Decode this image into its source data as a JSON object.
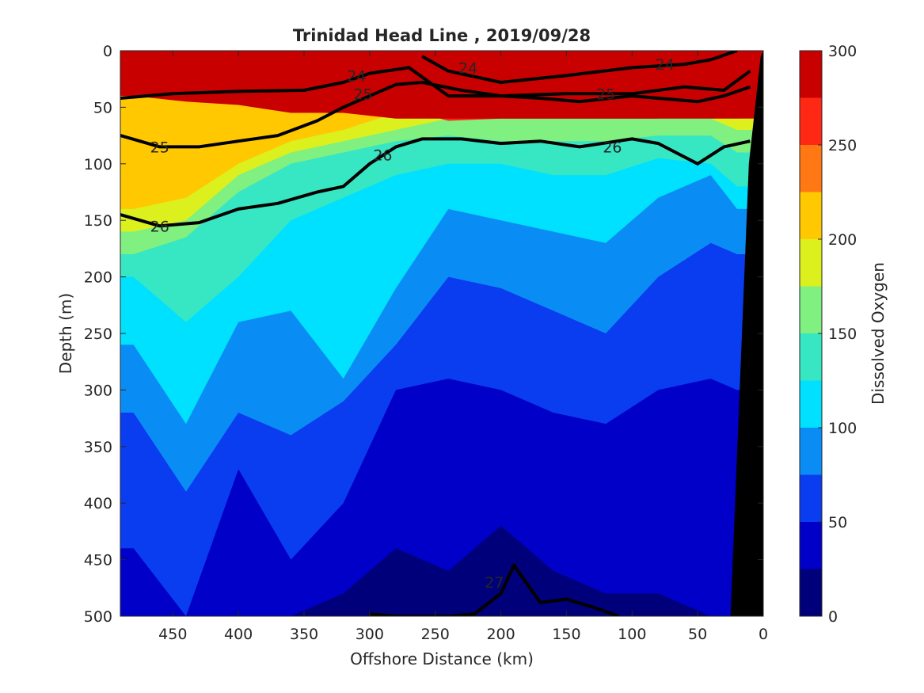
{
  "chart_data": {
    "type": "heatmap",
    "title": "Trinidad Head Line , 2019/09/28",
    "xlabel": "Offshore Distance (km)",
    "ylabel": "Depth (m)",
    "colorbar_label": "Dissolved Oxygen",
    "xlim": [
      490,
      0
    ],
    "ylim": [
      0,
      500
    ],
    "x_reversed": true,
    "y_reversed": true,
    "x_ticks": [
      450,
      400,
      350,
      300,
      250,
      200,
      150,
      100,
      50,
      0
    ],
    "y_ticks": [
      0,
      50,
      100,
      150,
      200,
      250,
      300,
      350,
      400,
      450,
      500
    ],
    "colorbar": {
      "ticks": [
        0,
        50,
        100,
        150,
        200,
        250,
        300
      ],
      "levels": [
        0,
        25,
        50,
        75,
        100,
        125,
        150,
        175,
        200,
        225,
        250,
        275,
        300
      ],
      "colors": [
        "#00007a",
        "#0000c8",
        "#0a3cf0",
        "#0a8cf5",
        "#00e0ff",
        "#37e6c3",
        "#80f080",
        "#dcf01e",
        "#ffc800",
        "#ff7814",
        "#ff2814",
        "#c80000"
      ]
    },
    "oxygen_depth_boundaries": {
      "x": [
        480,
        440,
        400,
        360,
        320,
        280,
        240,
        200,
        160,
        120,
        80,
        40,
        20
      ],
      "boundaries": [
        {
          "level": 275,
          "depth": [
            40,
            45,
            48,
            55,
            55,
            60,
            60,
            60,
            60,
            60,
            60,
            60,
            60
          ]
        },
        {
          "level": 250,
          "depth": [
            38,
            42,
            40,
            36,
            32,
            50,
            62,
            60,
            60,
            60,
            60,
            30,
            15
          ]
        },
        {
          "level": 225,
          "depth": [
            32,
            34,
            32,
            28,
            30,
            40,
            55,
            58,
            55,
            55,
            50,
            40,
            20
          ]
        },
        {
          "level": 200,
          "depth": [
            140,
            130,
            100,
            80,
            70,
            55,
            45,
            50,
            50,
            48,
            50,
            45,
            50
          ]
        },
        {
          "level": 175,
          "depth": [
            160,
            150,
            110,
            90,
            80,
            70,
            60,
            60,
            60,
            58,
            55,
            60,
            70
          ]
        },
        {
          "level": 150,
          "depth": [
            180,
            165,
            125,
            100,
            90,
            80,
            75,
            80,
            80,
            80,
            75,
            75,
            90
          ]
        },
        {
          "level": 125,
          "depth": [
            200,
            240,
            200,
            150,
            130,
            110,
            100,
            100,
            110,
            110,
            95,
            100,
            120
          ]
        },
        {
          "level": 100,
          "depth": [
            260,
            330,
            240,
            230,
            290,
            210,
            140,
            150,
            160,
            170,
            130,
            110,
            140
          ]
        },
        {
          "level": 75,
          "depth": [
            320,
            390,
            320,
            340,
            310,
            260,
            200,
            210,
            230,
            250,
            200,
            170,
            180
          ]
        },
        {
          "level": 50,
          "depth": [
            440,
            500,
            370,
            450,
            400,
            300,
            290,
            300,
            320,
            330,
            300,
            290,
            300
          ]
        },
        {
          "level": 25,
          "depth": [
            500,
            500,
            500,
            500,
            480,
            440,
            460,
            420,
            460,
            480,
            480,
            500,
            500
          ]
        }
      ]
    },
    "density_contours": [
      {
        "label": "24",
        "x": [
          260,
          240,
          200,
          150,
          100,
          60,
          40,
          20
        ],
        "depth": [
          5,
          18,
          28,
          22,
          15,
          12,
          8,
          0
        ]
      },
      {
        "label": "25",
        "x": [
          490,
          450,
          400,
          350,
          320,
          300,
          270,
          240,
          200,
          150,
          100,
          60,
          30,
          10
        ],
        "depth": [
          42,
          38,
          36,
          35,
          28,
          20,
          15,
          40,
          40,
          38,
          38,
          32,
          35,
          18
        ]
      },
      {
        "label": "25",
        "x": [
          490,
          460,
          430,
          400,
          370,
          340,
          320,
          300,
          280,
          260,
          230,
          200,
          170,
          140,
          100,
          80,
          50,
          30,
          10
        ],
        "depth": [
          75,
          85,
          85,
          80,
          75,
          62,
          50,
          40,
          30,
          28,
          35,
          40,
          42,
          45,
          40,
          42,
          45,
          40,
          32
        ]
      },
      {
        "label": "26",
        "x": [
          490,
          460,
          430,
          400,
          370,
          340,
          320,
          300,
          280,
          260,
          230,
          200,
          170,
          140,
          100,
          80,
          50,
          30,
          10
        ],
        "depth": [
          145,
          155,
          152,
          140,
          135,
          125,
          120,
          100,
          85,
          78,
          78,
          82,
          80,
          85,
          78,
          82,
          100,
          85,
          80
        ]
      },
      {
        "label": "27",
        "x": [
          300,
          280,
          240,
          220,
          200,
          190,
          170,
          150,
          130,
          110
        ],
        "depth": [
          498,
          500,
          500,
          498,
          480,
          455,
          488,
          485,
          492,
          500
        ]
      }
    ],
    "contour_labels": [
      {
        "text": "24",
        "x": 225,
        "depth": 15
      },
      {
        "text": "24",
        "x": 75,
        "depth": 12
      },
      {
        "text": "24",
        "x": 310,
        "depth": 22
      },
      {
        "text": "25",
        "x": 305,
        "depth": 38
      },
      {
        "text": "25",
        "x": 120,
        "depth": 38
      },
      {
        "text": "25",
        "x": 460,
        "depth": 85
      },
      {
        "text": "26",
        "x": 290,
        "depth": 92
      },
      {
        "text": "26",
        "x": 115,
        "depth": 85
      },
      {
        "text": "26",
        "x": 460,
        "depth": 155
      },
      {
        "text": "27",
        "x": 205,
        "depth": 470
      }
    ],
    "bathymetry": {
      "x": [
        25,
        11,
        2,
        0
      ],
      "depth": [
        500,
        100,
        5,
        0
      ]
    }
  }
}
